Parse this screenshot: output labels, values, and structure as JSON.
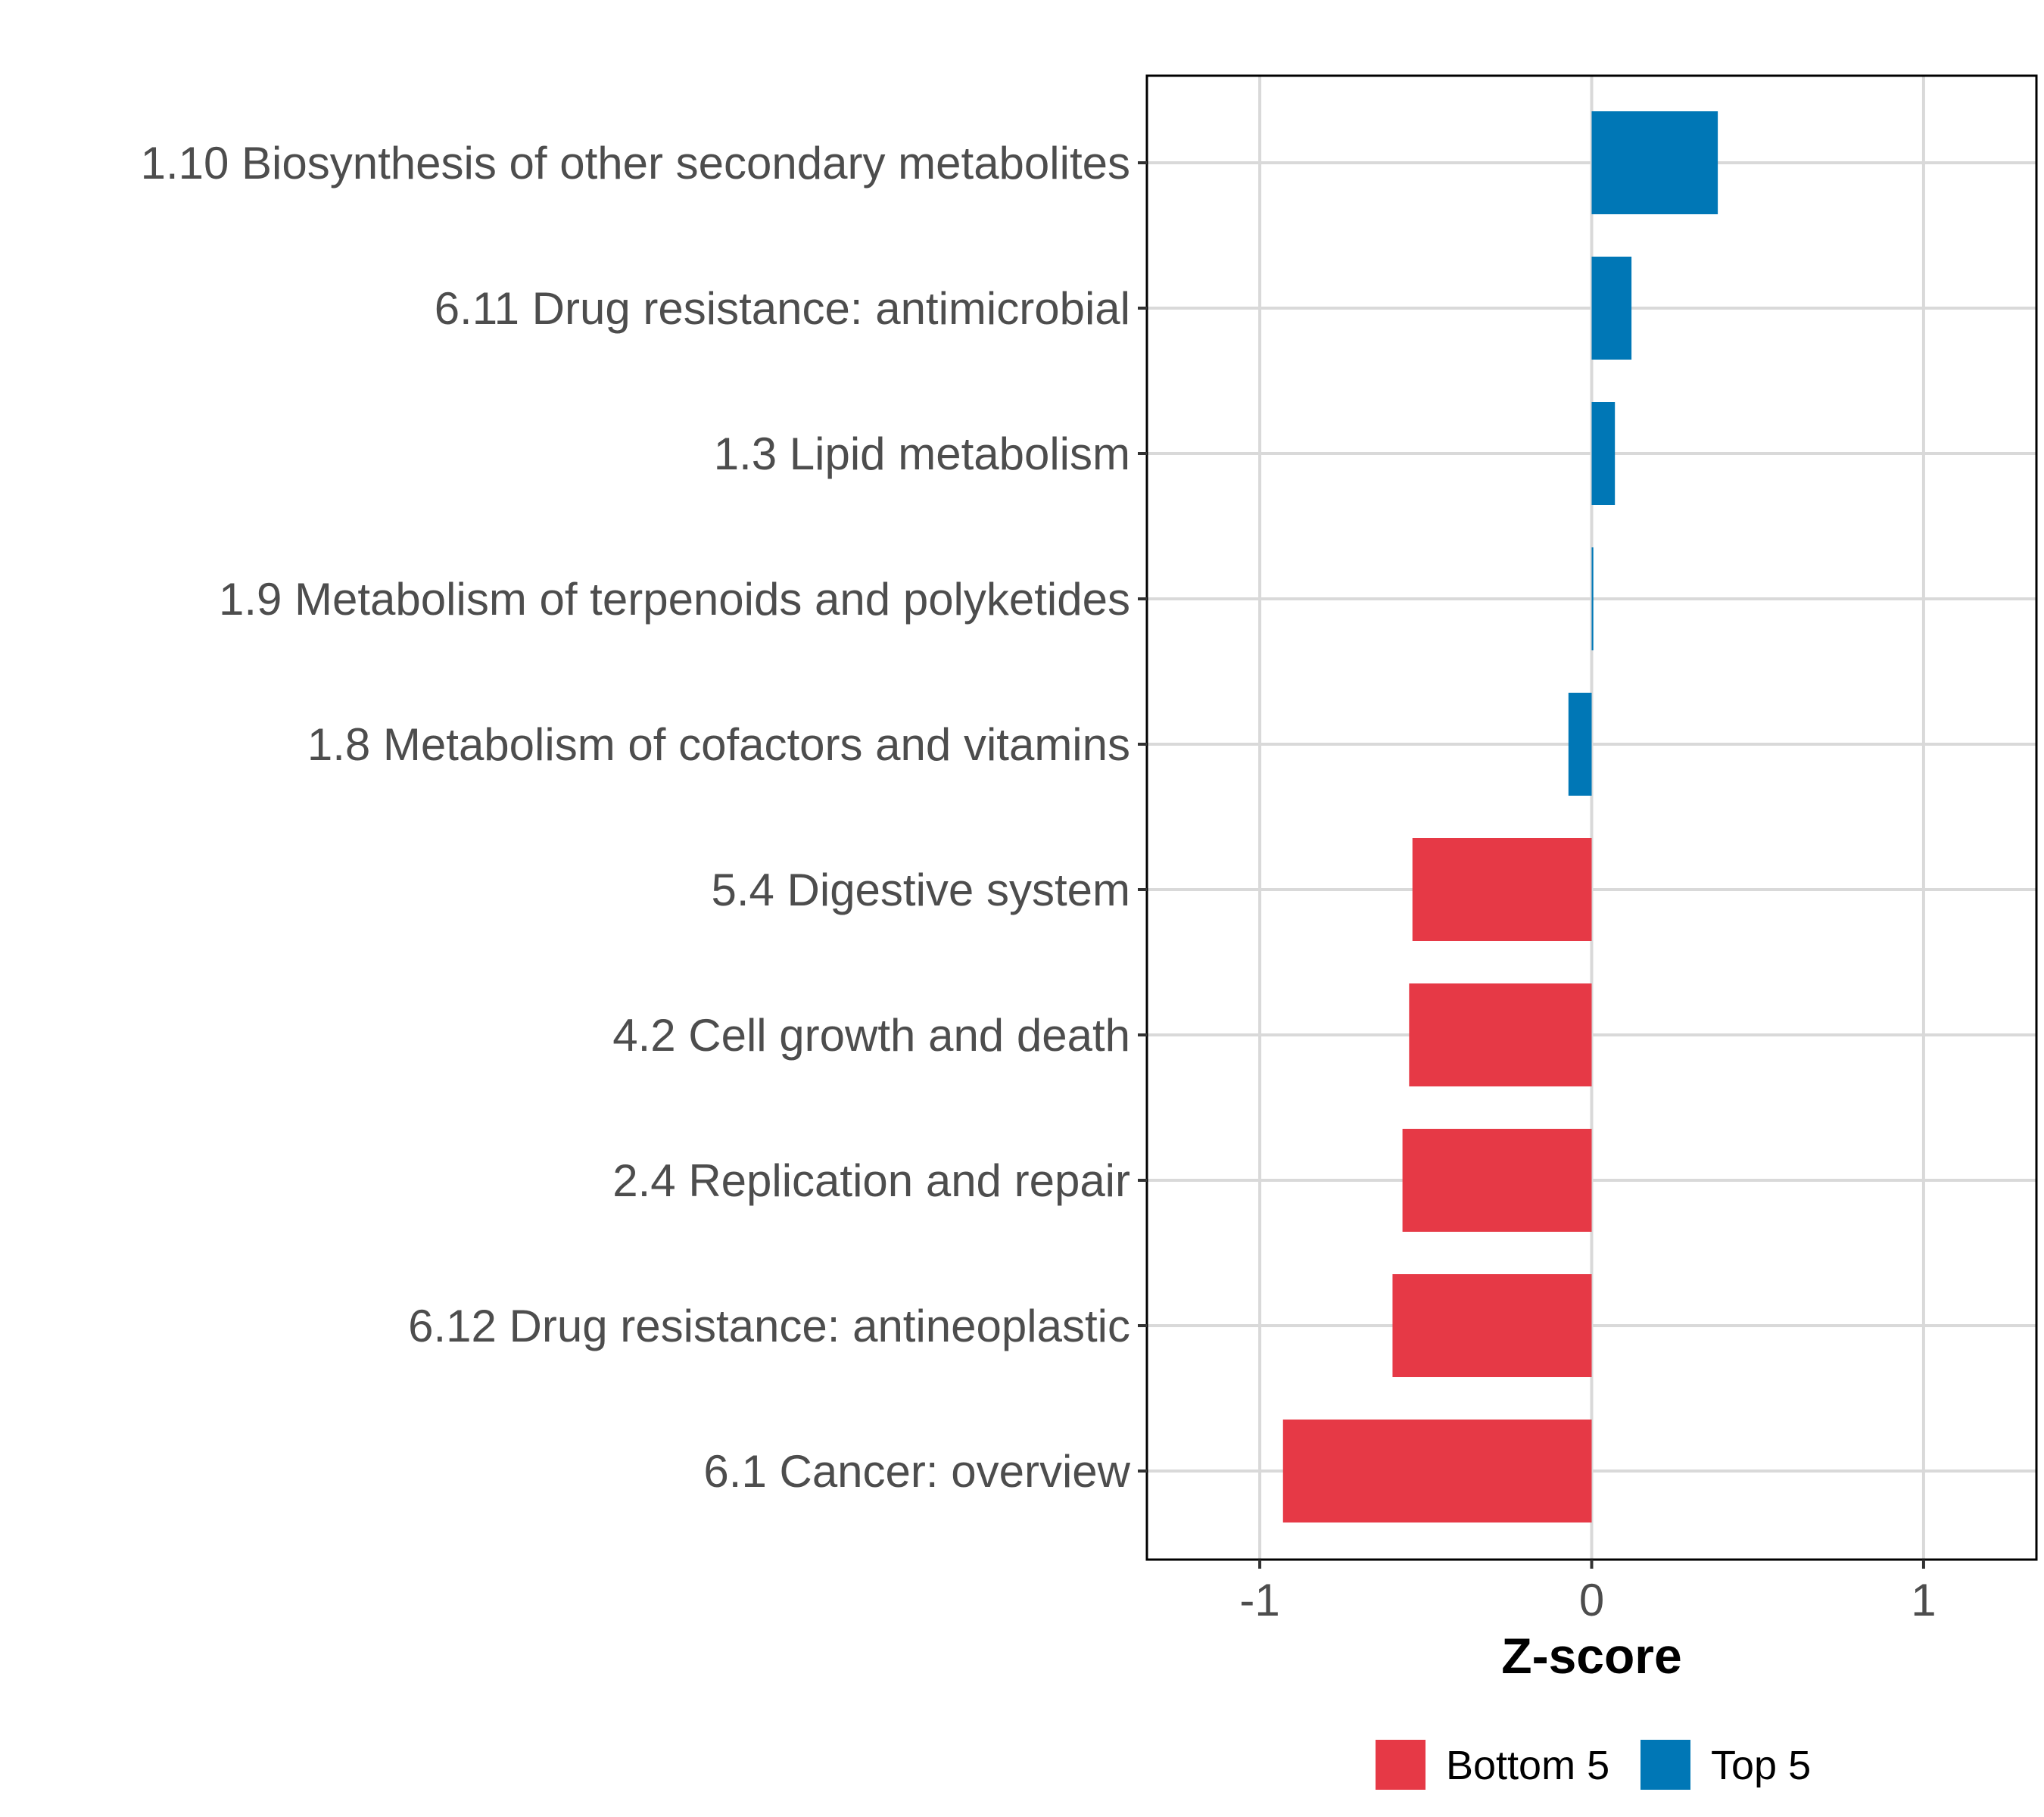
{
  "chart_data": {
    "type": "bar",
    "orientation": "horizontal",
    "title": "",
    "xlabel": "Z-score",
    "ylabel": "",
    "xlim": [
      -1.34,
      1.34
    ],
    "xticks": [
      -1,
      0,
      1
    ],
    "xtick_labels": [
      "-1",
      "0",
      "1"
    ],
    "grid": true,
    "legend_position": "bottom",
    "categories": [
      "1.10 Biosynthesis of other secondary metabolites",
      "6.11 Drug resistance: antimicrobial",
      "1.3 Lipid metabolism",
      "1.9 Metabolism of terpenoids and polyketides",
      "1.8 Metabolism of cofactors and vitamins",
      "5.4 Digestive system",
      "4.2 Cell growth and death",
      "2.4 Replication and repair",
      "6.12 Drug resistance: antineoplastic",
      "6.1 Cancer: overview"
    ],
    "values": [
      0.38,
      0.12,
      0.07,
      0.005,
      -0.07,
      -0.54,
      -0.55,
      -0.57,
      -0.6,
      -0.93
    ],
    "groups": [
      "Top 5",
      "Top 5",
      "Top 5",
      "Top 5",
      "Top 5",
      "Bottom 5",
      "Bottom 5",
      "Bottom 5",
      "Bottom 5",
      "Bottom 5"
    ],
    "legend": [
      {
        "name": "Bottom 5",
        "color": "#E63946"
      },
      {
        "name": "Top 5",
        "color": "#0077B6"
      }
    ]
  }
}
